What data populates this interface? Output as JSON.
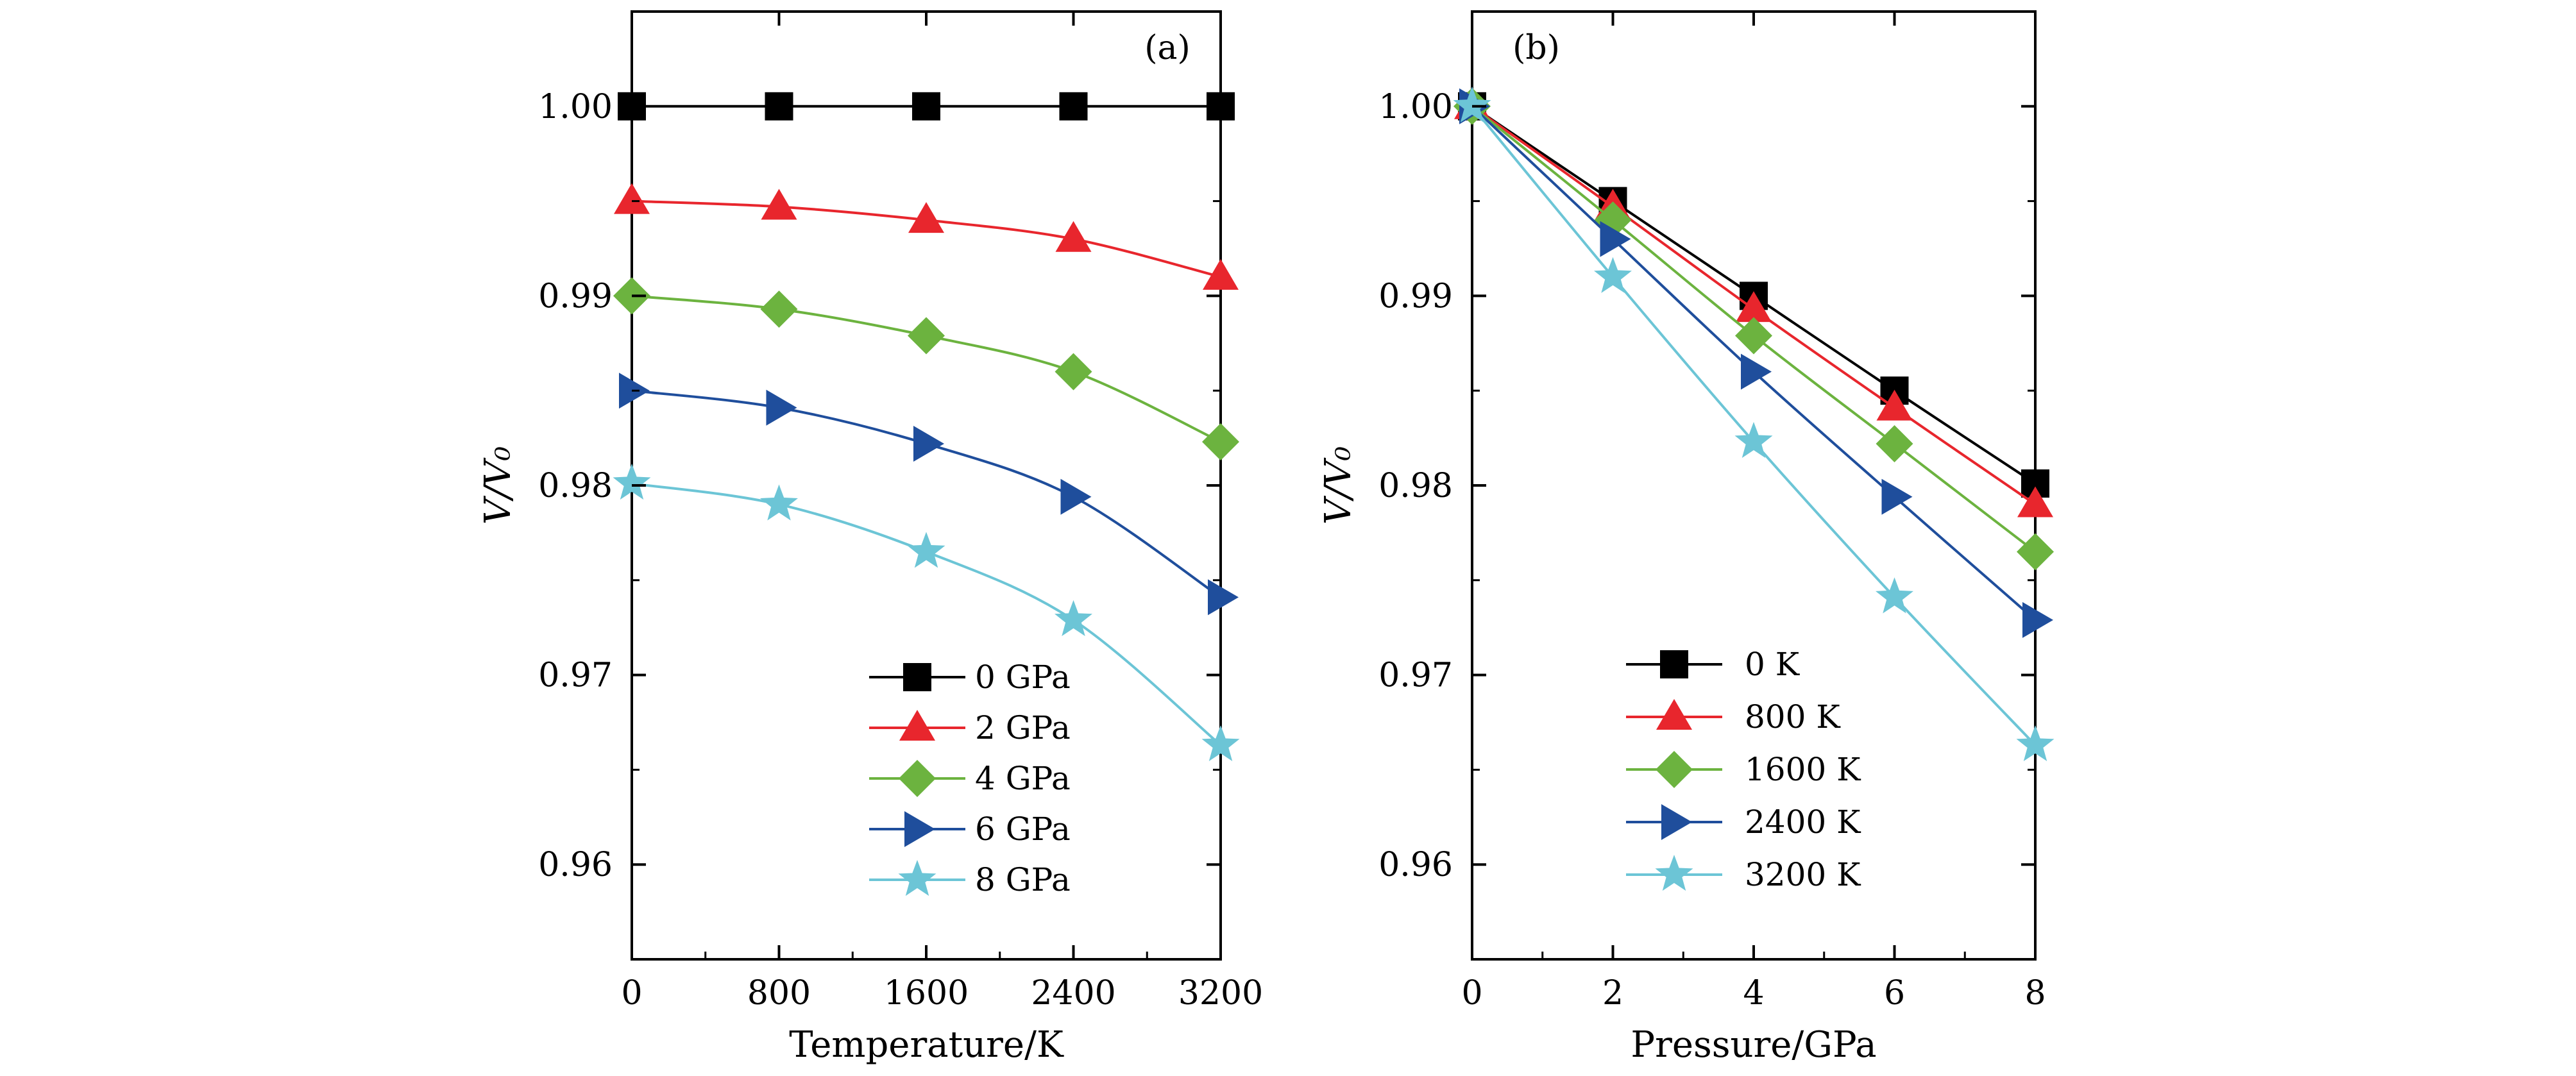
{
  "figure": {
    "panel_a": {
      "tag": "(a)",
      "xlabel": "Temperature/K",
      "ylabel": "V/V₀"
    },
    "panel_b": {
      "tag": "(b)",
      "xlabel": "Pressure/GPa",
      "ylabel": "V/V₀"
    }
  },
  "colors": {
    "black": "#000000",
    "red": "#e8262d",
    "green": "#6cb33f",
    "blue": "#1f4e9c",
    "cyan": "#6cc5d6"
  },
  "chart_data": [
    {
      "id": "a",
      "type": "line",
      "title": "",
      "panel_tag": "(a)",
      "xlabel": "Temperature/K",
      "ylabel": "V/V₀",
      "xlim": [
        0,
        3200
      ],
      "ylim": [
        0.955,
        1.005
      ],
      "xticks": [
        0,
        800,
        1600,
        2400,
        3200
      ],
      "xtick_labels": [
        "0",
        "800",
        "1600",
        "2400",
        "3200"
      ],
      "yticks": [
        0.96,
        0.97,
        0.98,
        0.99,
        1.0
      ],
      "ytick_labels": [
        "0.96",
        "0.97",
        "0.98",
        "0.99",
        "1.00"
      ],
      "grid": false,
      "legend_position": "bottom-right",
      "x": [
        0,
        800,
        1600,
        2400,
        3200
      ],
      "series": [
        {
          "name": "0 GPa",
          "color": "#000000",
          "marker": "square",
          "values": [
            1.0,
            1.0,
            1.0,
            1.0,
            1.0
          ]
        },
        {
          "name": "2 GPa",
          "color": "#e8262d",
          "marker": "triangle-up",
          "values": [
            0.995,
            0.9947,
            0.994,
            0.993,
            0.991
          ]
        },
        {
          "name": "4 GPa",
          "color": "#6cb33f",
          "marker": "diamond",
          "values": [
            0.99,
            0.9893,
            0.9879,
            0.986,
            0.9823
          ]
        },
        {
          "name": "6 GPa",
          "color": "#1f4e9c",
          "marker": "triangle-right",
          "values": [
            0.985,
            0.9841,
            0.9822,
            0.9794,
            0.9741
          ]
        },
        {
          "name": "8 GPa",
          "color": "#6cc5d6",
          "marker": "star",
          "values": [
            0.9801,
            0.979,
            0.9765,
            0.9729,
            0.9663
          ]
        }
      ]
    },
    {
      "id": "b",
      "type": "line",
      "title": "",
      "panel_tag": "(b)",
      "xlabel": "Pressure/GPa",
      "ylabel": "V/V₀",
      "xlim": [
        0,
        8
      ],
      "ylim": [
        0.955,
        1.005
      ],
      "xticks": [
        0,
        2,
        4,
        6,
        8
      ],
      "xtick_labels": [
        "0",
        "2",
        "4",
        "6",
        "8"
      ],
      "yticks": [
        0.96,
        0.97,
        0.98,
        0.99,
        1.0
      ],
      "ytick_labels": [
        "0.96",
        "0.97",
        "0.98",
        "0.99",
        "1.00"
      ],
      "grid": false,
      "legend_position": "bottom-left",
      "x": [
        0,
        2,
        4,
        6,
        8
      ],
      "series": [
        {
          "name": "0 K",
          "color": "#000000",
          "marker": "square",
          "values": [
            1.0,
            0.995,
            0.99,
            0.985,
            0.9801
          ]
        },
        {
          "name": "800 K",
          "color": "#e8262d",
          "marker": "triangle-up",
          "values": [
            1.0,
            0.9947,
            0.9893,
            0.9841,
            0.979
          ]
        },
        {
          "name": "1600 K",
          "color": "#6cb33f",
          "marker": "diamond",
          "values": [
            1.0,
            0.994,
            0.9879,
            0.9822,
            0.9765
          ]
        },
        {
          "name": "2400 K",
          "color": "#1f4e9c",
          "marker": "triangle-right",
          "values": [
            1.0,
            0.993,
            0.986,
            0.9794,
            0.9729
          ]
        },
        {
          "name": "3200 K",
          "color": "#6cc5d6",
          "marker": "star",
          "values": [
            1.0,
            0.991,
            0.9823,
            0.9741,
            0.9663
          ]
        }
      ]
    }
  ]
}
